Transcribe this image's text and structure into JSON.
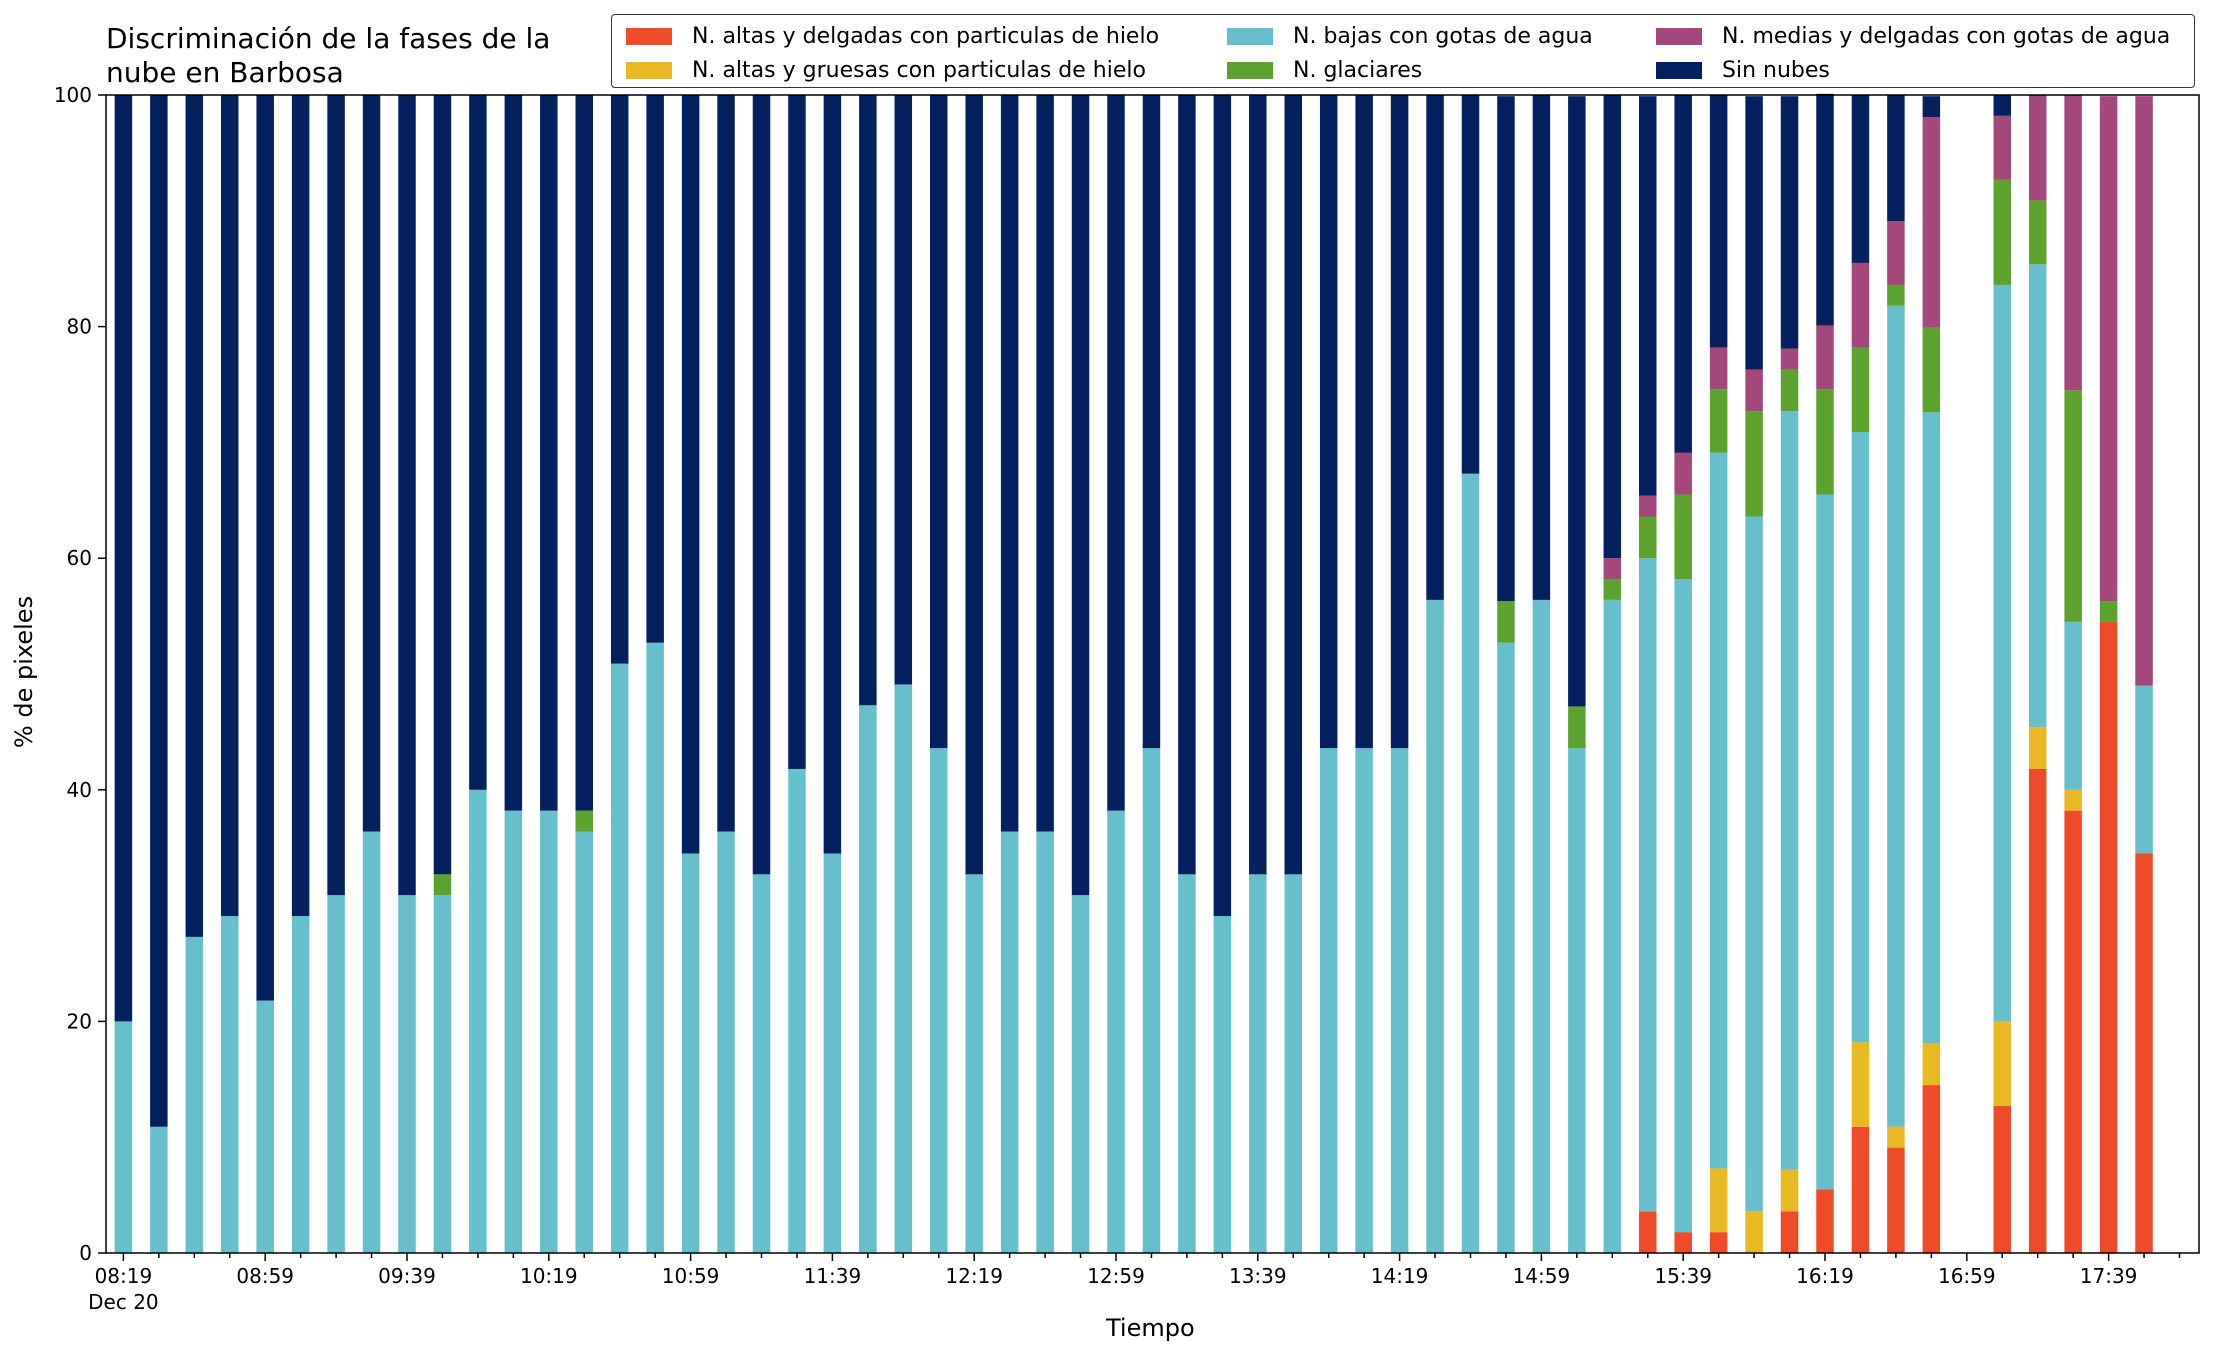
{
  "chart_data": {
    "type": "bar",
    "stacked": true,
    "title": "Discriminación de la fases de la nube en Barbosa",
    "xlabel": "Tiempo",
    "ylabel": "% de pixeles",
    "ylim": [
      0,
      100
    ],
    "yticks": [
      0,
      20,
      40,
      60,
      80,
      100
    ],
    "grid": false,
    "legend_position": "top-right",
    "x_tick_labels": [
      "08:19",
      "08:59",
      "09:39",
      "10:19",
      "10:59",
      "11:39",
      "12:19",
      "12:59",
      "13:39",
      "14:19",
      "14:59",
      "15:39",
      "16:19",
      "16:59",
      "17:39"
    ],
    "x_date_label": "Dec 20",
    "categories": [
      "08:19",
      "08:29",
      "08:39",
      "08:49",
      "08:59",
      "09:09",
      "09:19",
      "09:29",
      "09:39",
      "09:49",
      "09:59",
      "10:09",
      "10:19",
      "10:29",
      "10:39",
      "10:49",
      "10:59",
      "11:09",
      "11:19",
      "11:29",
      "11:39",
      "11:49",
      "11:59",
      "12:09",
      "12:19",
      "12:29",
      "12:39",
      "12:49",
      "12:59",
      "13:09",
      "13:19",
      "13:29",
      "13:39",
      "13:49",
      "13:59",
      "14:09",
      "14:19",
      "14:29",
      "14:39",
      "14:49",
      "14:59",
      "15:09",
      "15:19",
      "15:29",
      "15:39",
      "15:49",
      "15:59",
      "16:09",
      "16:19",
      "16:29",
      "16:39",
      "16:49",
      "16:59",
      "17:09",
      "17:19",
      "17:29",
      "17:39",
      "17:49"
    ],
    "series": [
      {
        "name": "N. altas y delgadas con particulas de hielo",
        "color": "#ee4b2b",
        "values": [
          0,
          0,
          0,
          0,
          0,
          0,
          0,
          0,
          0,
          0,
          0,
          0,
          0,
          0,
          0,
          0,
          0,
          0,
          0,
          0,
          0,
          0,
          0,
          0,
          0,
          0,
          0,
          0,
          0,
          0,
          0,
          0,
          0,
          0,
          0,
          0,
          0,
          0,
          0,
          0,
          0,
          0,
          0,
          3.6,
          1.8,
          1.8,
          0,
          3.6,
          5.5,
          10.9,
          9.1,
          14.5,
          0,
          12.7,
          41.8,
          38.2,
          54.5,
          34.5
        ]
      },
      {
        "name": "N. altas y gruesas con particulas de hielo",
        "color": "#e8b923",
        "values": [
          0,
          0,
          0,
          0,
          0,
          0,
          0,
          0,
          0,
          0,
          0,
          0,
          0,
          0,
          0,
          0,
          0,
          0,
          0,
          0,
          0,
          0,
          0,
          0,
          0,
          0,
          0,
          0,
          0,
          0,
          0,
          0,
          0,
          0,
          0,
          0,
          0,
          0,
          0,
          0,
          0,
          0,
          0,
          0,
          0,
          5.5,
          3.6,
          3.6,
          0,
          7.3,
          1.8,
          3.6,
          0,
          7.3,
          3.6,
          1.8,
          0,
          0
        ]
      },
      {
        "name": "N. bajas con gotas de agua",
        "color": "#66bfcb",
        "values": [
          20,
          10.9,
          27.3,
          29.1,
          21.8,
          29.1,
          30.9,
          36.4,
          30.9,
          30.9,
          40,
          38.2,
          38.2,
          36.4,
          50.9,
          52.7,
          34.5,
          36.4,
          32.7,
          41.8,
          34.5,
          47.3,
          49.1,
          43.6,
          32.7,
          36.4,
          36.4,
          30.9,
          38.2,
          43.6,
          32.7,
          29.1,
          32.7,
          32.7,
          43.6,
          43.6,
          43.6,
          56.4,
          67.3,
          52.7,
          56.4,
          43.6,
          56.4,
          56.4,
          56.4,
          61.8,
          60,
          65.5,
          60,
          52.7,
          70.9,
          54.5,
          0,
          63.6,
          40,
          14.5,
          0,
          14.5
        ]
      },
      {
        "name": "N. glaciares",
        "color": "#5da22f",
        "values": [
          0,
          0,
          0,
          0,
          0,
          0,
          0,
          0,
          0,
          1.8,
          0,
          0,
          0,
          1.8,
          0,
          0,
          0,
          0,
          0,
          0,
          0,
          0,
          0,
          0,
          0,
          0,
          0,
          0,
          0,
          0,
          0,
          0,
          0,
          0,
          0,
          0,
          0,
          0,
          0,
          3.6,
          0,
          3.6,
          1.8,
          3.6,
          7.3,
          5.5,
          9.1,
          3.6,
          9.1,
          7.3,
          1.8,
          7.3,
          0,
          9.1,
          5.5,
          20,
          1.8,
          0
        ]
      },
      {
        "name": "N. medias y delgadas con gotas de agua",
        "color": "#a4477a",
        "values": [
          0,
          0,
          0,
          0,
          0,
          0,
          0,
          0,
          0,
          0,
          0,
          0,
          0,
          0,
          0,
          0,
          0,
          0,
          0,
          0,
          0,
          0,
          0,
          0,
          0,
          0,
          0,
          0,
          0,
          0,
          0,
          0,
          0,
          0,
          0,
          0,
          0,
          0,
          0,
          0,
          0,
          0,
          1.8,
          1.8,
          3.6,
          3.6,
          3.6,
          1.8,
          5.5,
          7.3,
          5.5,
          18.2,
          0,
          5.5,
          9.1,
          25.5,
          43.6,
          50.9
        ]
      },
      {
        "name": "Sin nubes",
        "color": "#05205e",
        "values": [
          80,
          89.1,
          72.7,
          70.9,
          78.2,
          70.9,
          69.1,
          63.6,
          69.1,
          67.3,
          60,
          61.8,
          61.8,
          61.8,
          49.1,
          47.3,
          65.5,
          63.6,
          67.3,
          58.2,
          65.5,
          52.7,
          50.9,
          56.4,
          67.3,
          63.6,
          63.6,
          69.1,
          61.8,
          56.4,
          67.3,
          70.9,
          67.3,
          67.3,
          56.4,
          56.4,
          56.4,
          43.6,
          32.7,
          43.6,
          43.6,
          52.7,
          40,
          34.5,
          30.9,
          21.8,
          23.6,
          21.8,
          20,
          14.5,
          10.9,
          1.8,
          0,
          1.8,
          0,
          0,
          0,
          0
        ]
      }
    ]
  }
}
